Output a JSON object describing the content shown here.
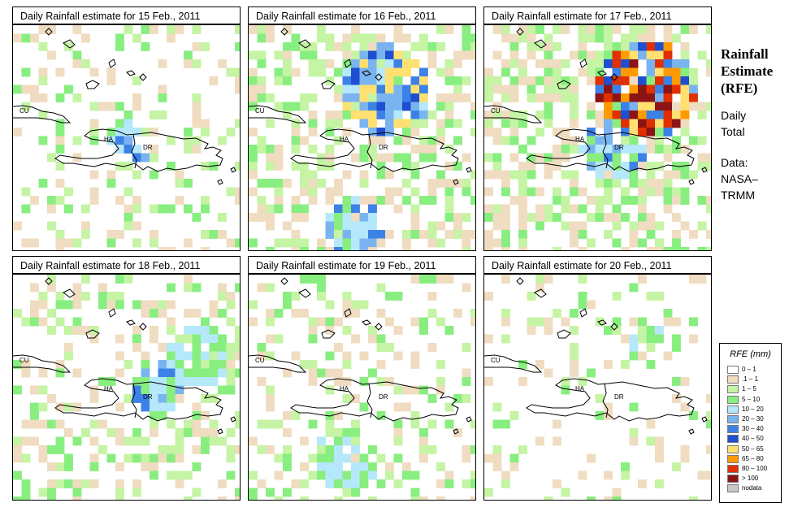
{
  "panels": [
    {
      "title": "Daily Rainfall estimate for  15 Feb., 2011",
      "seed": 15,
      "clusters": [
        [
          140,
          140,
          22,
          "blue"
        ],
        [
          160,
          160,
          12,
          "dark"
        ]
      ],
      "density": 0.22
    },
    {
      "title": "Daily Rainfall estimate for  16 Feb., 2011",
      "seed": 16,
      "clusters": [
        [
          170,
          80,
          55,
          "heavy"
        ],
        [
          130,
          250,
          35,
          "blue"
        ]
      ],
      "density": 0.45
    },
    {
      "title": "Daily Rainfall estimate for  17 Feb., 2011",
      "seed": 17,
      "clusters": [
        [
          200,
          80,
          60,
          "extreme"
        ],
        [
          160,
          150,
          40,
          "blue"
        ]
      ],
      "density": 0.55
    },
    {
      "title": "Daily Rainfall estimate for  18 Feb., 2011",
      "seed": 18,
      "clusters": [
        [
          180,
          140,
          35,
          "blue"
        ],
        [
          230,
          100,
          40,
          "light"
        ]
      ],
      "density": 0.35
    },
    {
      "title": "Daily Rainfall estimate for  19 Feb., 2011",
      "seed": 19,
      "clusters": [
        [
          120,
          230,
          40,
          "light"
        ]
      ],
      "density": 0.25
    },
    {
      "title": "Daily Rainfall estimate for  20 Feb., 2011",
      "seed": 20,
      "clusters": [
        [
          200,
          80,
          20,
          "light"
        ]
      ],
      "density": 0.16
    }
  ],
  "map_labels": {
    "cu": "CU",
    "ha": "HA",
    "dr": "DR"
  },
  "side": {
    "title": [
      "Rainfall",
      "Estimate",
      "(RFE)"
    ],
    "daily": [
      "Daily",
      "Total"
    ],
    "data": [
      "Data:",
      "NASA–",
      "TRMM"
    ]
  },
  "legend": {
    "title": "RFE (mm)",
    "items": [
      {
        "label": "0 – 1",
        "color": "#ffffff"
      },
      {
        "label": ".1 – 1",
        "color": "#f0dcc0"
      },
      {
        "label": "1 – 5",
        "color": "#c4f4a4"
      },
      {
        "label": "5 – 10",
        "color": "#88ee80"
      },
      {
        "label": "10 – 20",
        "color": "#b4e8fa"
      },
      {
        "label": "20 – 30",
        "color": "#7ab4f0"
      },
      {
        "label": "30 – 40",
        "color": "#3c82e6"
      },
      {
        "label": "40 – 50",
        "color": "#1e4fd0"
      },
      {
        "label": "50 – 65",
        "color": "#ffe070"
      },
      {
        "label": "65 – 80",
        "color": "#ff9a00"
      },
      {
        "label": "80 – 100",
        "color": "#e03000"
      },
      {
        "label": "> 100",
        "color": "#8c1414"
      },
      {
        "label": "nodata",
        "color": "#c8c8c8"
      }
    ]
  }
}
